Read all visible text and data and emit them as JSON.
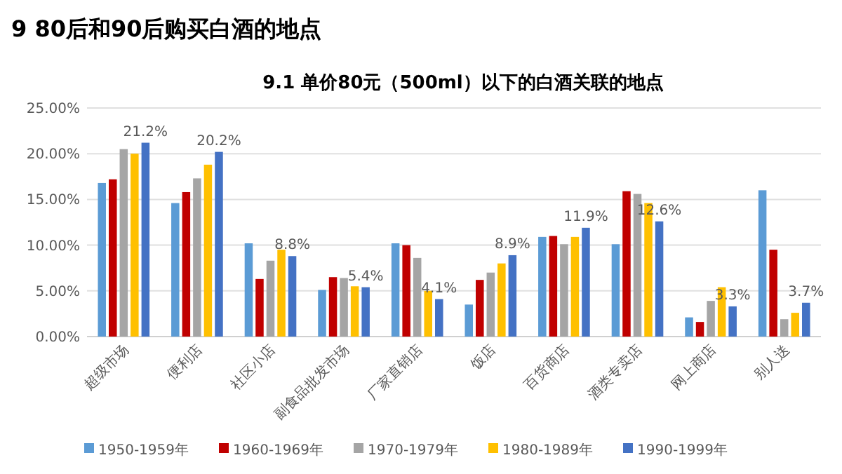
{
  "chart_data": {
    "type": "bar",
    "title": "9 80后和90后购买白酒的地点",
    "subtitle": "9.1 单价80元（500ml）以下的白酒关联的地点",
    "categories": [
      "超级市场",
      "便利店",
      "社区小店",
      "副食品批发市场",
      "厂家直销店",
      "饭店",
      "百货商店",
      "酒类专卖店",
      "网上商店",
      "别人送"
    ],
    "series": [
      {
        "name": "1950-1959年",
        "color": "#5b9bd5",
        "values": [
          16.8,
          14.6,
          10.2,
          5.1,
          10.2,
          3.5,
          10.9,
          10.1,
          2.1,
          16.0
        ]
      },
      {
        "name": "1960-1969年",
        "color": "#c00000",
        "values": [
          17.2,
          15.8,
          6.3,
          6.5,
          10.0,
          6.2,
          11.0,
          15.9,
          1.6,
          9.5
        ]
      },
      {
        "name": "1970-1979年",
        "color": "#a5a5a5",
        "values": [
          20.5,
          17.3,
          8.3,
          6.4,
          8.6,
          7.0,
          10.1,
          15.6,
          3.9,
          1.9
        ]
      },
      {
        "name": "1980-1989年",
        "color": "#ffc000",
        "values": [
          20.0,
          18.8,
          9.5,
          5.5,
          5.0,
          8.0,
          10.9,
          14.6,
          5.4,
          2.6
        ]
      },
      {
        "name": "1990-1999年",
        "color": "#4472c4",
        "values": [
          21.2,
          20.2,
          8.8,
          5.4,
          4.1,
          8.9,
          11.9,
          12.6,
          3.3,
          3.7
        ],
        "value_labels": [
          "21.2%",
          "20.2%",
          "8.8%",
          "5.4%",
          "4.1%",
          "8.9%",
          "11.9%",
          "12.6%",
          "3.3%",
          "3.7%"
        ]
      }
    ],
    "ylim": [
      0,
      25
    ],
    "yticks": [
      {
        "value": 0,
        "label": "0.00%"
      },
      {
        "value": 5,
        "label": "5.00%"
      },
      {
        "value": 10,
        "label": "10.00%"
      },
      {
        "value": 15,
        "label": "15.00%"
      },
      {
        "value": 20,
        "label": "20.00%"
      },
      {
        "value": 25,
        "label": "25.00%"
      }
    ],
    "grid": "y",
    "legend": "bottom"
  }
}
